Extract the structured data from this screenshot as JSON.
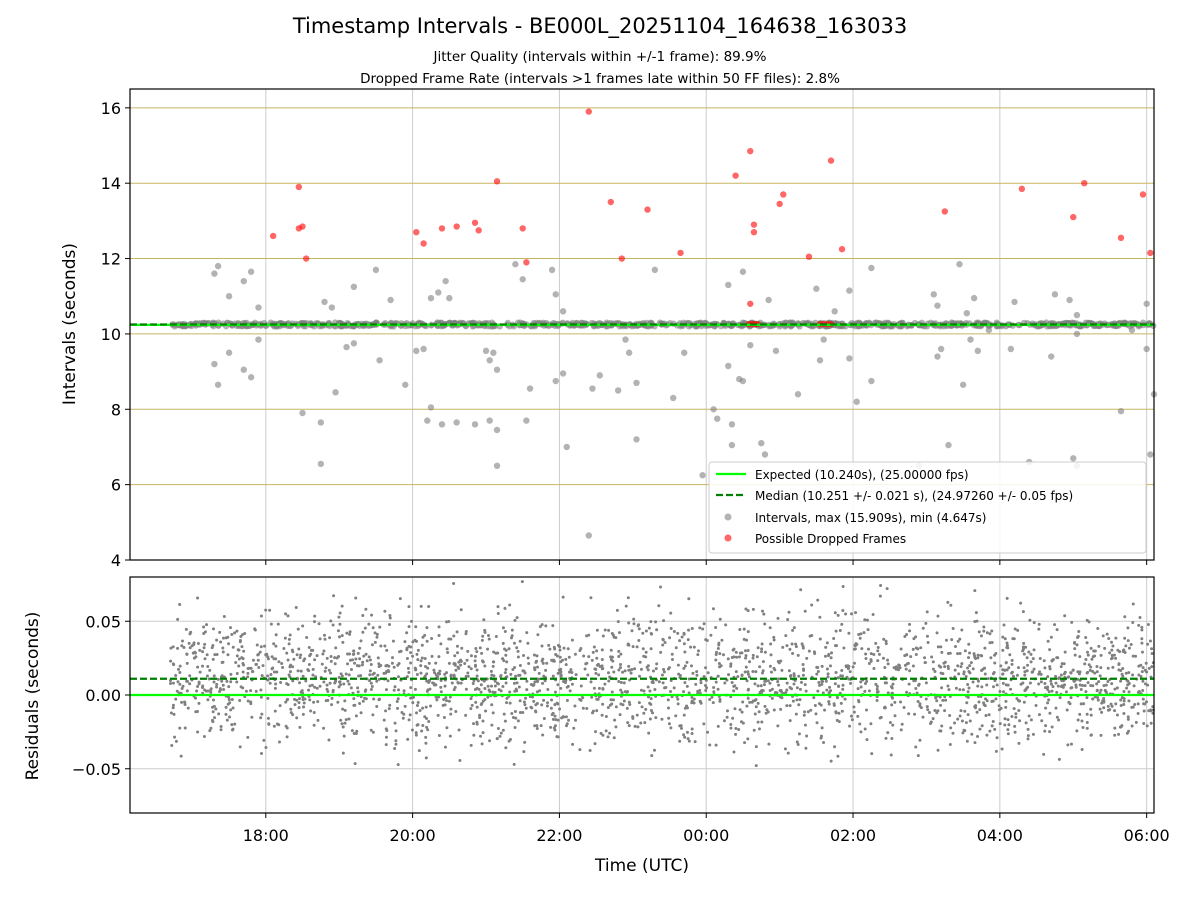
{
  "title": "Timestamp Intervals - BE000L_20251104_164638_163033",
  "subtitle1": "Jitter Quality (intervals within +/-1 frame): 89.9%",
  "subtitle2": "Dropped Frame Rate (intervals >1 frames late within 50 FF files): 2.8%",
  "colors": {
    "expected": "#00ff00",
    "median": "#008000",
    "intervals": "#808080",
    "dropped": "#ff0000",
    "hgrid_top": "#c8b560",
    "grid": "#cccccc"
  },
  "chart_data": [
    {
      "type": "scatter",
      "name": "intervals",
      "xlabel": "",
      "ylabel": "Intervals (seconds)",
      "x_unit": "hours since 00:00 UTC",
      "xlim": [
        -7.85,
        6.1
      ],
      "ylim": [
        4,
        16.5
      ],
      "yticks": [
        4,
        6,
        8,
        10,
        12,
        14,
        16
      ],
      "xticks": [
        -6,
        -4,
        -2,
        0,
        2,
        4,
        6
      ],
      "grid": true,
      "legend_position": "lower-right",
      "legend": [
        "Expected (10.240s), (25.00000 fps)",
        "Median (10.251 +/- 0.021 s), (24.97260 +/- 0.05 fps)",
        "Intervals, max (15.909s), min (4.647s)",
        "Possible Dropped Frames"
      ],
      "expected_value": 10.24,
      "median_value": 10.251,
      "interval_band": {
        "x_range": [
          -7.3,
          6.1
        ],
        "y_range": [
          10.2,
          10.3
        ]
      },
      "outliers_high": [
        [
          -6.7,
          11.6
        ],
        [
          -6.65,
          11.8
        ],
        [
          -6.5,
          11.0
        ],
        [
          -6.3,
          11.4
        ],
        [
          -6.2,
          11.65
        ],
        [
          -6.1,
          10.7
        ],
        [
          -5.2,
          10.85
        ],
        [
          -5.1,
          10.7
        ],
        [
          -4.8,
          11.25
        ],
        [
          -4.5,
          11.7
        ],
        [
          -4.3,
          10.9
        ],
        [
          -3.75,
          10.95
        ],
        [
          -3.65,
          11.1
        ],
        [
          -3.55,
          11.4
        ],
        [
          -3.5,
          10.95
        ],
        [
          -2.6,
          11.85
        ],
        [
          -2.5,
          11.45
        ],
        [
          -2.1,
          11.7
        ],
        [
          -2.05,
          11.05
        ],
        [
          -1.95,
          10.6
        ],
        [
          -0.7,
          11.7
        ],
        [
          0.3,
          11.3
        ],
        [
          0.5,
          11.65
        ],
        [
          0.85,
          10.9
        ],
        [
          1.5,
          11.2
        ],
        [
          1.75,
          10.6
        ],
        [
          1.95,
          11.15
        ],
        [
          2.25,
          11.75
        ],
        [
          3.1,
          11.05
        ],
        [
          3.15,
          10.75
        ],
        [
          3.45,
          11.85
        ],
        [
          3.55,
          10.55
        ],
        [
          3.65,
          10.95
        ],
        [
          4.2,
          10.85
        ],
        [
          4.75,
          11.05
        ],
        [
          4.95,
          10.9
        ],
        [
          5.05,
          10.5
        ],
        [
          6.0,
          10.8
        ]
      ],
      "outliers_low": [
        [
          -6.7,
          9.2
        ],
        [
          -6.65,
          8.65
        ],
        [
          -6.5,
          9.5
        ],
        [
          -6.3,
          9.05
        ],
        [
          -6.2,
          8.85
        ],
        [
          -6.1,
          9.85
        ],
        [
          -5.5,
          7.9
        ],
        [
          -5.25,
          7.65
        ],
        [
          -5.25,
          6.55
        ],
        [
          -5.05,
          8.45
        ],
        [
          -4.9,
          9.65
        ],
        [
          -4.8,
          9.75
        ],
        [
          -4.45,
          9.3
        ],
        [
          -4.1,
          8.65
        ],
        [
          -3.95,
          9.55
        ],
        [
          -3.85,
          9.6
        ],
        [
          -3.8,
          7.7
        ],
        [
          -3.75,
          8.05
        ],
        [
          -3.6,
          7.6
        ],
        [
          -3.4,
          7.65
        ],
        [
          -3.15,
          7.6
        ],
        [
          -3.0,
          9.55
        ],
        [
          -2.95,
          9.3
        ],
        [
          -2.9,
          9.5
        ],
        [
          -2.95,
          7.7
        ],
        [
          -2.85,
          7.45
        ],
        [
          -2.85,
          9.05
        ],
        [
          -2.85,
          6.5
        ],
        [
          -2.45,
          7.7
        ],
        [
          -2.4,
          8.55
        ],
        [
          -2.05,
          8.75
        ],
        [
          -1.95,
          8.95
        ],
        [
          -1.9,
          7.0
        ],
        [
          -1.6,
          4.65
        ],
        [
          -1.55,
          8.55
        ],
        [
          -1.45,
          8.9
        ],
        [
          -1.2,
          8.5
        ],
        [
          -1.1,
          9.85
        ],
        [
          -1.05,
          9.5
        ],
        [
          -0.95,
          8.7
        ],
        [
          -0.95,
          7.2
        ],
        [
          -0.45,
          8.3
        ],
        [
          -0.05,
          6.25
        ],
        [
          -0.3,
          9.5
        ],
        [
          0.1,
          8.0
        ],
        [
          0.15,
          7.75
        ],
        [
          0.35,
          7.6
        ],
        [
          0.45,
          8.8
        ],
        [
          0.6,
          9.7
        ],
        [
          0.3,
          9.15
        ],
        [
          0.35,
          7.05
        ],
        [
          0.5,
          8.75
        ],
        [
          0.75,
          7.1
        ],
        [
          0.8,
          6.8
        ],
        [
          0.95,
          9.55
        ],
        [
          1.25,
          8.4
        ],
        [
          1.55,
          9.3
        ],
        [
          1.6,
          9.85
        ],
        [
          1.95,
          9.35
        ],
        [
          2.05,
          8.2
        ],
        [
          2.25,
          8.75
        ],
        [
          2.9,
          6.5
        ],
        [
          3.15,
          9.4
        ],
        [
          3.2,
          9.6
        ],
        [
          3.3,
          7.05
        ],
        [
          3.5,
          8.65
        ],
        [
          3.6,
          9.85
        ],
        [
          3.7,
          9.55
        ],
        [
          3.85,
          10.1
        ],
        [
          4.15,
          9.6
        ],
        [
          4.4,
          6.6
        ],
        [
          4.7,
          9.4
        ],
        [
          5.0,
          6.7
        ],
        [
          5.05,
          6.5
        ],
        [
          5.05,
          10.0
        ],
        [
          5.65,
          7.95
        ],
        [
          5.8,
          10.1
        ],
        [
          6.0,
          9.6
        ],
        [
          6.05,
          6.8
        ],
        [
          6.1,
          8.4
        ]
      ],
      "dropped": [
        [
          -5.9,
          12.6
        ],
        [
          -5.55,
          13.9
        ],
        [
          -5.55,
          12.8
        ],
        [
          -5.5,
          12.85
        ],
        [
          -5.45,
          12.0
        ],
        [
          -3.95,
          12.7
        ],
        [
          -3.85,
          12.4
        ],
        [
          -3.6,
          12.8
        ],
        [
          -3.4,
          12.85
        ],
        [
          -3.15,
          12.95
        ],
        [
          -3.1,
          12.75
        ],
        [
          -2.85,
          14.05
        ],
        [
          -2.5,
          12.8
        ],
        [
          -2.45,
          11.9
        ],
        [
          -1.6,
          15.9
        ],
        [
          -1.3,
          13.5
        ],
        [
          -1.15,
          12.0
        ],
        [
          -0.8,
          13.3
        ],
        [
          -0.35,
          12.15
        ],
        [
          0.4,
          14.2
        ],
        [
          0.6,
          14.85
        ],
        [
          0.65,
          12.7
        ],
        [
          0.6,
          10.8
        ],
        [
          0.65,
          12.9
        ],
        [
          1.0,
          13.45
        ],
        [
          1.05,
          13.7
        ],
        [
          1.4,
          12.05
        ],
        [
          1.7,
          14.6
        ],
        [
          1.85,
          12.25
        ],
        [
          3.25,
          13.25
        ],
        [
          4.3,
          13.85
        ],
        [
          5.0,
          13.1
        ],
        [
          5.15,
          14.0
        ],
        [
          5.65,
          12.55
        ],
        [
          5.95,
          13.7
        ],
        [
          6.05,
          12.15
        ],
        [
          0.58,
          10.26
        ],
        [
          0.62,
          10.26
        ],
        [
          0.66,
          10.26
        ],
        [
          0.7,
          10.26
        ],
        [
          1.55,
          10.26
        ],
        [
          1.6,
          10.26
        ],
        [
          1.65,
          10.26
        ],
        [
          1.7,
          10.26
        ]
      ]
    },
    {
      "type": "scatter",
      "name": "residuals",
      "xlabel": "Time (UTC)",
      "ylabel": "Residuals (seconds)",
      "xlim": [
        -7.85,
        6.1
      ],
      "ylim": [
        -0.08,
        0.08
      ],
      "yticks": [
        -0.05,
        0.0,
        0.05
      ],
      "ytick_labels": [
        "−0.05",
        "0.00",
        "0.05"
      ],
      "xticks": [
        -6,
        -4,
        -2,
        0,
        2,
        4,
        6
      ],
      "xtick_labels": [
        "18:00",
        "20:00",
        "22:00",
        "00:00",
        "02:00",
        "04:00",
        "06:00"
      ],
      "grid": true,
      "expected_value": 0.0,
      "median_value": 0.011,
      "x_range": [
        -7.3,
        6.1
      ],
      "residual_range": [
        -0.075,
        0.077
      ],
      "residual_center": 0.011,
      "approx_points": 2600
    }
  ]
}
